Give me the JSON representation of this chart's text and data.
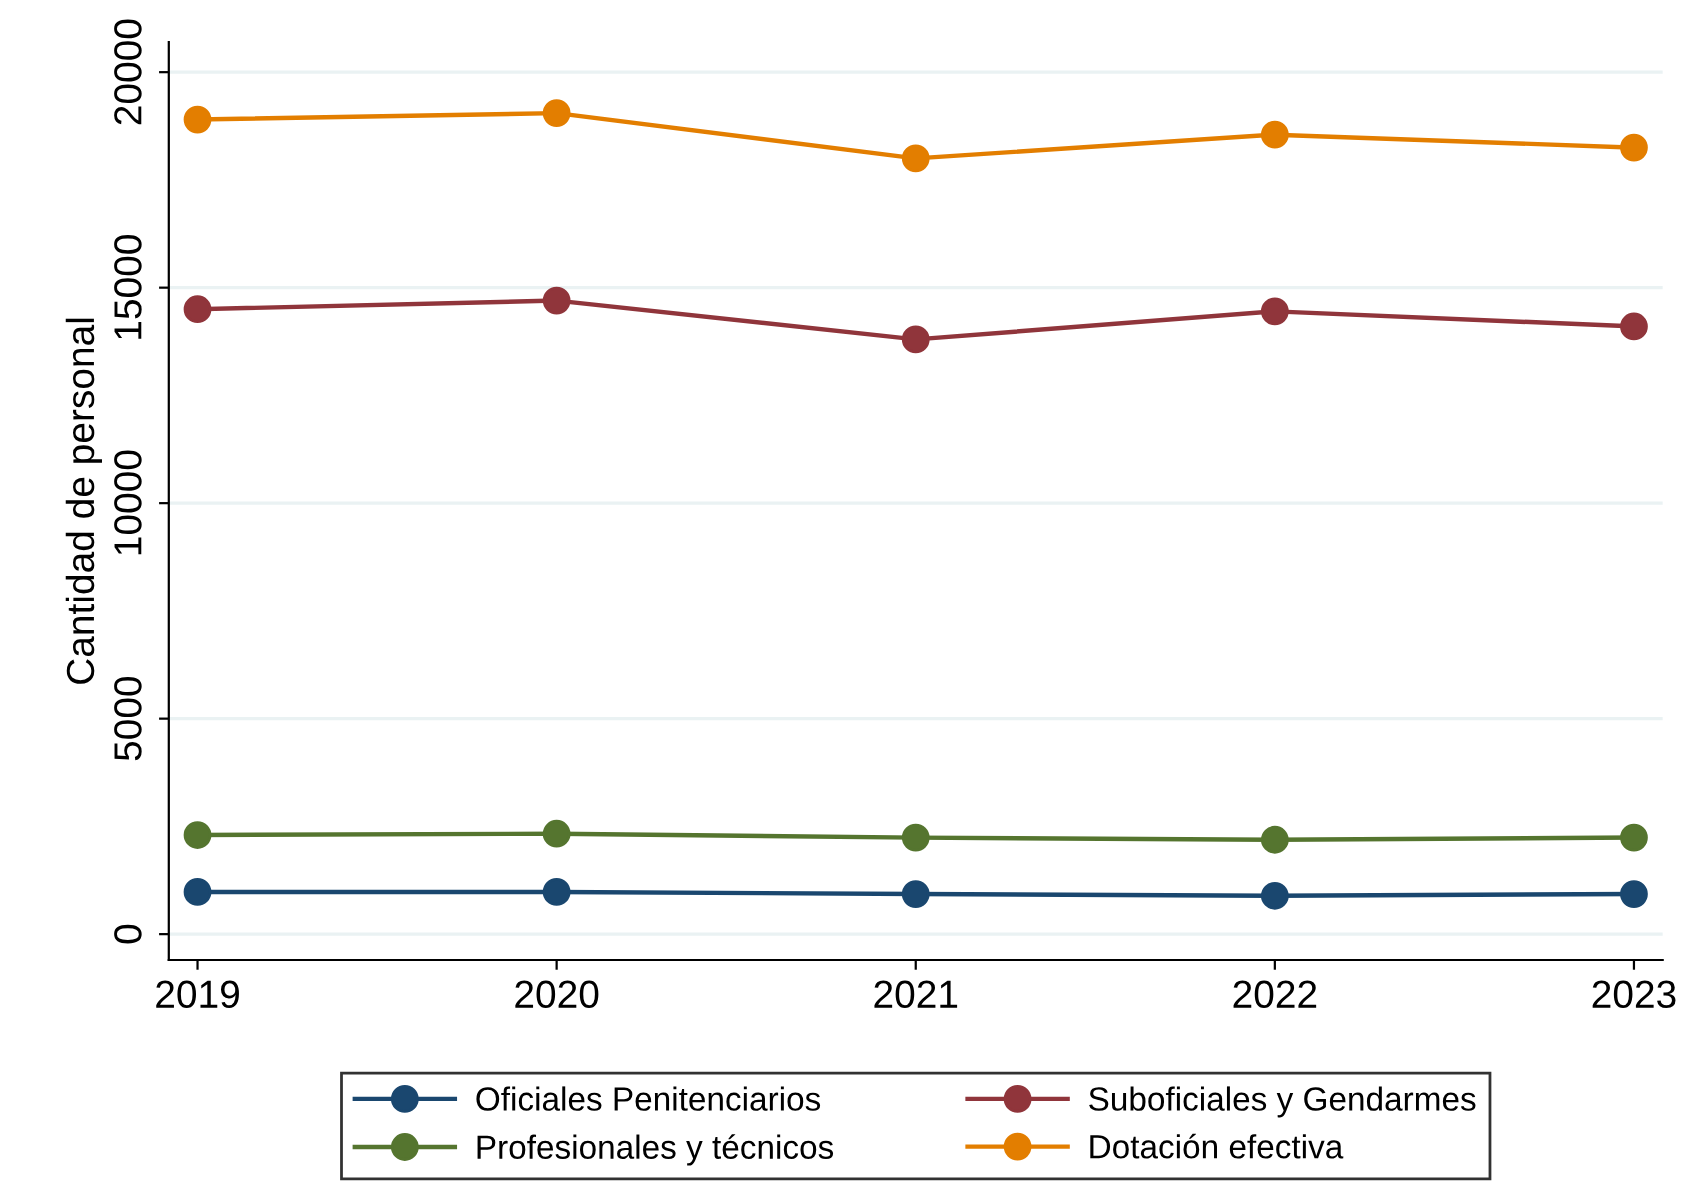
{
  "chart_data": {
    "type": "line",
    "ylabel": "Cantidad de personal",
    "x": [
      2019,
      2020,
      2021,
      2022,
      2023
    ],
    "xlim": [
      2018.92,
      2023.08
    ],
    "xticks": [
      2019,
      2020,
      2021,
      2022,
      2023
    ],
    "ylim": [
      -600,
      20700
    ],
    "yticks": [
      0,
      5000,
      10000,
      15000,
      20000
    ],
    "series": [
      {
        "name": "Oficiales Penitenciarios",
        "color": "#1a476f",
        "values": [
          980,
          980,
          930,
          890,
          930
        ]
      },
      {
        "name": "Suboficiales y Gendarmes",
        "color": "#90353b",
        "values": [
          14500,
          14700,
          13800,
          14450,
          14100
        ]
      },
      {
        "name": "Profesionales y técnicos",
        "color": "#55752f",
        "values": [
          2300,
          2330,
          2240,
          2190,
          2240
        ]
      },
      {
        "name": "Dotación efectiva",
        "color": "#e37e00",
        "values": [
          18900,
          19050,
          18000,
          18550,
          18250
        ]
      }
    ],
    "grid": "y",
    "legend": "bottom",
    "marker": "circle",
    "line_style": "solid"
  }
}
